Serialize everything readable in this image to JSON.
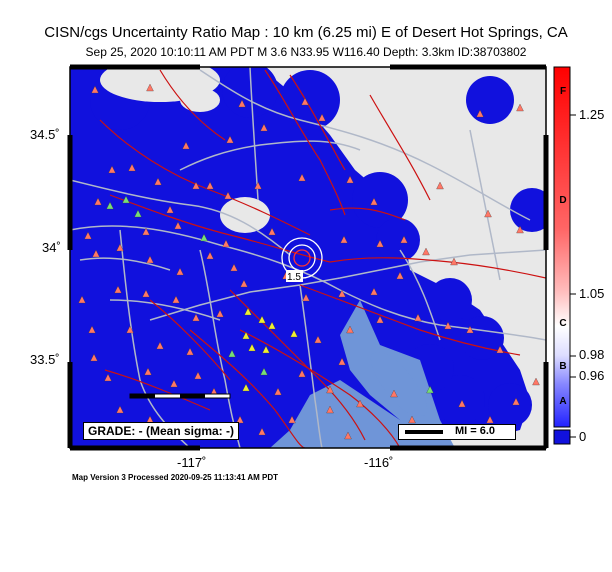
{
  "header": {
    "title": "CISN/cgs Uncertainty Ratio Map : 10 km (6.25 mi) E of Desert Hot Springs, CA",
    "subtitle": "Sep 25, 2020 10:10:11 AM PDT   M 3.6   N33.95 W116.40   Depth: 3.3km   ID:38703802"
  },
  "axes": {
    "lat_labels": [
      "34.5˚",
      "34˚",
      "33.5˚"
    ],
    "lon_labels": [
      "-117˚",
      "-116˚"
    ]
  },
  "map": {
    "grade_text": "GRADE: - (Mean sigma: -)",
    "scale_text": "MI = 6.0",
    "contour_label": "1.5",
    "colors": {
      "ocean": "#6f95d8",
      "land": "#e8e8e8",
      "coverage": "#1111dd",
      "station": "#ff7766",
      "fault": "#cc1111",
      "road": "#b0b8c8"
    }
  },
  "colorbar": {
    "letters": [
      "F",
      "D",
      "C",
      "B",
      "A"
    ],
    "values": [
      "1.25",
      "1.05",
      "0.98",
      "0.96",
      "0"
    ]
  },
  "footer": {
    "version": "Map Version 3 Processed 2020-09-25 11:13:41 AM PDT"
  }
}
